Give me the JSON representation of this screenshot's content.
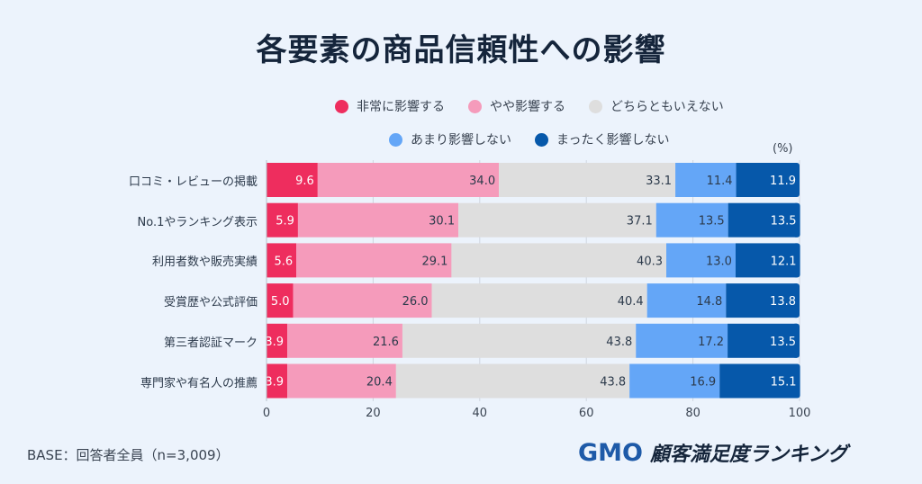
{
  "title": "各要素の商品信頼性への影響",
  "unit_label": "(%)",
  "base_note": "BASE：回答者全員（n=3,009）",
  "logo": {
    "brand": "GMO",
    "text": "顧客満足度ランキング"
  },
  "legend": [
    {
      "label": "非常に影響する",
      "color": "#ee2d5e",
      "icon": "circle-dot-icon"
    },
    {
      "label": "やや影響する",
      "color": "#f59bbb",
      "icon": "circle-dot-icon"
    },
    {
      "label": "どちらともいえない",
      "color": "#dedede",
      "icon": "circle-dot-icon"
    },
    {
      "label": "あまり影響しない",
      "color": "#64a6f7",
      "icon": "circle-dot-icon"
    },
    {
      "label": "まったく影響しない",
      "color": "#0658aa",
      "icon": "circle-dot-icon"
    }
  ],
  "chart_data": {
    "type": "bar",
    "orientation": "horizontal",
    "stacked": true,
    "title": "各要素の商品信頼性への影響",
    "xlabel": "",
    "ylabel": "",
    "unit": "%",
    "xlim": [
      0,
      100
    ],
    "x_ticks": [
      0,
      20,
      40,
      60,
      80,
      100
    ],
    "grid": true,
    "legend_position": "top",
    "categories": [
      "口コミ・レビューの掲載",
      "No.1やランキング表示",
      "利用者数や販売実績",
      "受賞歴や公式評価",
      "第三者認証マーク",
      "専門家や有名人の推薦"
    ],
    "series": [
      {
        "name": "非常に影響する",
        "color": "#ee2d5e",
        "label_color": "#ffffff",
        "values": [
          9.6,
          5.9,
          5.6,
          5.0,
          3.9,
          3.9
        ]
      },
      {
        "name": "やや影響する",
        "color": "#f59bbb",
        "label_color": "#2c3a4b",
        "values": [
          34.0,
          30.1,
          29.1,
          26.0,
          21.6,
          20.4
        ]
      },
      {
        "name": "どちらともいえない",
        "color": "#dedede",
        "label_color": "#2c3a4b",
        "values": [
          33.1,
          37.1,
          40.3,
          40.4,
          43.8,
          43.8
        ]
      },
      {
        "name": "あまり影響しない",
        "color": "#64a6f7",
        "label_color": "#2c3a4b",
        "values": [
          11.4,
          13.5,
          13.0,
          14.8,
          17.2,
          16.9
        ]
      },
      {
        "name": "まったく影響しない",
        "color": "#0658aa",
        "label_color": "#ffffff",
        "values": [
          11.9,
          13.5,
          12.1,
          13.8,
          13.5,
          15.1
        ]
      }
    ]
  }
}
